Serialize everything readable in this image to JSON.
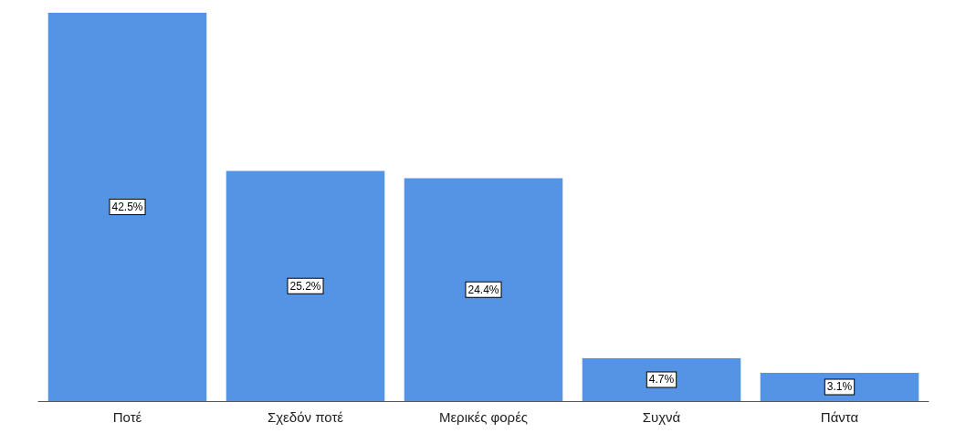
{
  "chart_data": {
    "type": "bar",
    "categories": [
      "Ποτέ",
      "Σχεδόν ποτέ",
      "Μερικές φορές",
      "Συχνά",
      "Πάντα"
    ],
    "values": [
      42.5,
      25.2,
      24.4,
      4.7,
      3.1
    ],
    "value_labels": [
      "42.5%",
      "25.2%",
      "24.4%",
      "4.7%",
      "3.1%"
    ],
    "color": "#5593e4"
  }
}
